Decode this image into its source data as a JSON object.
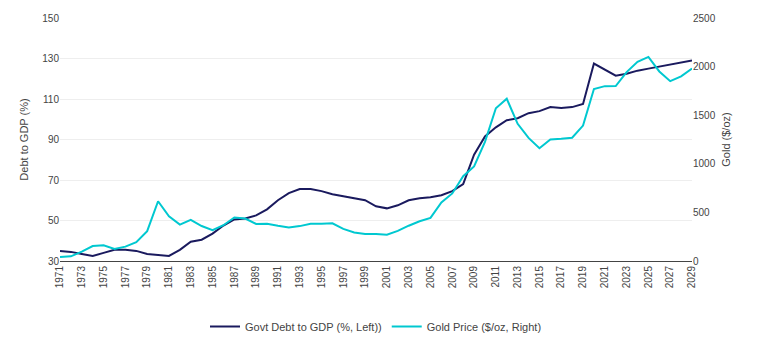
{
  "chart_data": {
    "type": "line",
    "x": [
      1971,
      1972,
      1973,
      1974,
      1975,
      1976,
      1977,
      1978,
      1979,
      1980,
      1981,
      1982,
      1983,
      1984,
      1985,
      1986,
      1987,
      1988,
      1989,
      1990,
      1991,
      1992,
      1993,
      1994,
      1995,
      1996,
      1997,
      1998,
      1999,
      2000,
      2001,
      2002,
      2003,
      2004,
      2005,
      2006,
      2007,
      2008,
      2009,
      2010,
      2011,
      2012,
      2013,
      2014,
      2015,
      2016,
      2017,
      2018,
      2019,
      2020,
      2021,
      2022,
      2023,
      2024,
      2025,
      2026,
      2027,
      2028,
      2029
    ],
    "series": [
      {
        "name": "Govt Debt to GDP (%, Left))",
        "color": "#1a1a5e",
        "values": [
          35.0,
          34.5,
          33.5,
          32.5,
          34.0,
          35.5,
          35.5,
          35.0,
          33.5,
          33.0,
          32.5,
          35.5,
          39.5,
          40.5,
          43.5,
          47.5,
          50.5,
          51.0,
          52.5,
          55.5,
          60.0,
          63.5,
          65.5,
          65.5,
          64.5,
          63.0,
          62.0,
          61.0,
          60.0,
          57.0,
          56.0,
          57.5,
          60.0,
          61.0,
          61.5,
          62.5,
          64.5,
          68.0,
          82.5,
          91.5,
          96.0,
          99.5,
          100.5,
          103.0,
          104.0,
          106.0,
          105.5,
          106.0,
          107.5,
          127.5,
          124.5,
          121.5,
          122.5,
          124.0,
          125.0,
          126.0,
          127.0,
          128.0,
          129.0
        ]
      },
      {
        "name": "Gold Price ($/oz, Right)",
        "color": "#00c8d0",
        "axis": "y2",
        "values": [
          40,
          48,
          97,
          154,
          161,
          124,
          148,
          193,
          307,
          615,
          460,
          375,
          424,
          360,
          317,
          368,
          447,
          437,
          381,
          383,
          362,
          344,
          359,
          384,
          384,
          388,
          331,
          294,
          279,
          279,
          271,
          310,
          363,
          409,
          444,
          603,
          695,
          872,
          972,
          1225,
          1571,
          1669,
          1411,
          1266,
          1160,
          1250,
          1257,
          1268,
          1393,
          1770,
          1799,
          1800,
          1943,
          2050,
          2100,
          1950,
          1850,
          1900,
          1980
        ]
      }
    ],
    "y_label": "Debt to GDP (%)",
    "y2_label": "Gold ($/oz)",
    "xlim": [
      1971,
      2029
    ],
    "xticks": [
      1971,
      1973,
      1975,
      1977,
      1979,
      1981,
      1983,
      1985,
      1987,
      1989,
      1991,
      1993,
      1995,
      1997,
      1999,
      2001,
      2003,
      2005,
      2007,
      2009,
      2011,
      2013,
      2015,
      2017,
      2019,
      2021,
      2023,
      2025,
      2027,
      2029
    ],
    "ylim": [
      30,
      150
    ],
    "yticks": [
      30,
      50,
      70,
      90,
      110,
      130,
      150
    ],
    "y2lim": [
      0,
      2500
    ],
    "y2ticks": [
      0,
      500,
      1000,
      1500,
      2000,
      2500
    ],
    "grid": "y",
    "legend": "bottom"
  }
}
